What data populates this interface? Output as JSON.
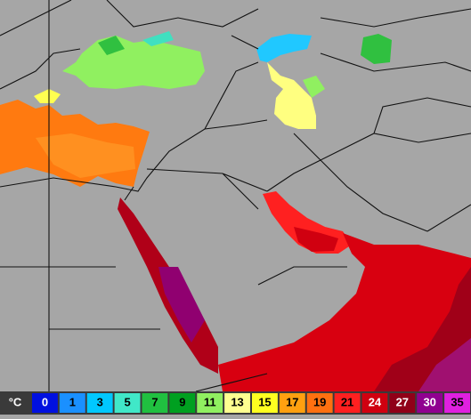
{
  "legend": {
    "unit": "°C",
    "labels": [
      "0",
      "1",
      "3",
      "5",
      "7",
      "9",
      "11",
      "13",
      "15",
      "17",
      "19",
      "21",
      "24",
      "27",
      "30",
      "35"
    ]
  }
}
